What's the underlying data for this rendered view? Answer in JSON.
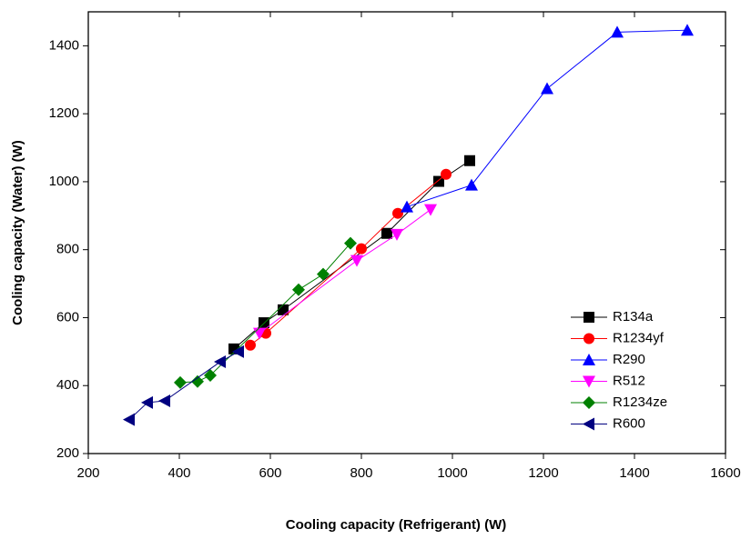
{
  "chart_data": {
    "type": "line",
    "x_label": "Cooling capacity (Refrigerant) (W)",
    "y_label": "Cooling capacity (Water) (W)",
    "xlim": [
      200,
      1600
    ],
    "xticks": [
      200,
      400,
      600,
      800,
      1000,
      1200,
      1400,
      1600
    ],
    "ylim": [
      200,
      1500
    ],
    "yticks": [
      200,
      400,
      600,
      800,
      1000,
      1200,
      1400
    ],
    "legend": "lower-right",
    "series": [
      {
        "name": "R134a",
        "color": "#000000",
        "marker": "square",
        "x": [
          520,
          586,
          628,
          856,
          970,
          1038
        ],
        "values": [
          508,
          585,
          623,
          848,
          1001,
          1062
        ]
      },
      {
        "name": "R1234yf",
        "color": "#ff0000",
        "marker": "circle",
        "x": [
          556,
          590,
          800,
          880,
          986
        ],
        "values": [
          519,
          554,
          803,
          907,
          1022
        ]
      },
      {
        "name": "R290",
        "color": "#0000ff",
        "marker": "triangle-up",
        "x": [
          900,
          1042,
          1208,
          1362,
          1516
        ],
        "values": [
          926,
          990,
          1274,
          1440,
          1446
        ]
      },
      {
        "name": "R512",
        "color": "#ff00ff",
        "marker": "triangle-down",
        "x": [
          576,
          790,
          878,
          952
        ],
        "values": [
          554,
          768,
          845,
          918
        ]
      },
      {
        "name": "R1234ze",
        "color": "#008000",
        "marker": "diamond",
        "x": [
          402,
          440,
          468,
          662,
          716,
          776
        ],
        "values": [
          409,
          412,
          430,
          682,
          728,
          819
        ]
      },
      {
        "name": "R600",
        "color": "#000080",
        "marker": "triangle-left",
        "x": [
          290,
          330,
          368,
          490,
          530
        ],
        "values": [
          300,
          350,
          355,
          470,
          500
        ]
      }
    ]
  }
}
